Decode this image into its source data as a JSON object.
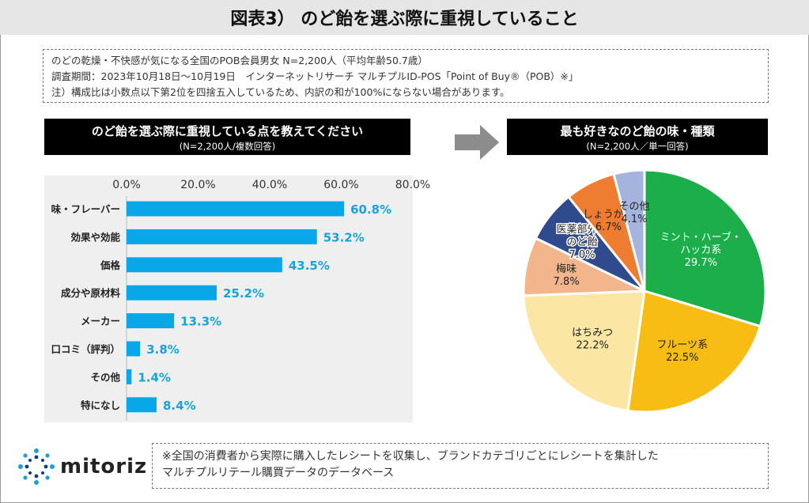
{
  "title": "図表3） のど飴を選ぶ際に重視していること",
  "info": {
    "line1": "のどの乾燥・不快感が気になる全国のPOB会員男女 N=2,200人（平均年齢50.7歳）",
    "line2": "調査期間：2023年10月18日～10月19日　インターネットリサーチ マルチプルID-POS「Point of Buy®（POB）※」",
    "line3": "注）構成比は小数点以下第2位を四捨五入しているため、内訳の和が100%にならない場合があります。"
  },
  "left_header": {
    "title": "のど飴を選ぶ際に重視している点を教えてください",
    "sub": "(N=2,200人/複数回答)"
  },
  "right_header": {
    "title": "最も好きなのど飴の味・種類",
    "sub": "(N=2,200人／単一回答)"
  },
  "footer": {
    "line1": "※全国の消費者から実際に購入したレシートを収集し、ブランドカテゴリごとにレシートを集計した",
    "line2": "マルチプルリテール購買データのデータベース"
  },
  "logo_text": "mitoriz",
  "colors": {
    "bar": "#0aa7e8",
    "value_label": "#1aa3d6",
    "title_bg": "#e6e6e6",
    "header_bg": "#000000"
  },
  "chart_data": [
    {
      "type": "bar",
      "orientation": "horizontal",
      "categories": [
        "味・フレーバー",
        "効果や効能",
        "価格",
        "成分や原材料",
        "メーカー",
        "口コミ（評判）",
        "その他",
        "特になし"
      ],
      "values": [
        60.8,
        53.2,
        43.5,
        25.2,
        13.3,
        3.8,
        1.4,
        8.4
      ],
      "value_labels": [
        "60.8%",
        "53.2%",
        "43.5%",
        "25.2%",
        "13.3%",
        "3.8%",
        "1.4%",
        "8.4%"
      ],
      "xlim": [
        0,
        80
      ],
      "ticks": [
        "0.0%",
        "20.0%",
        "40.0%",
        "60.0%",
        "80.0%"
      ],
      "tick_values": [
        0,
        20,
        40,
        60,
        80
      ]
    },
    {
      "type": "pie",
      "slices": [
        {
          "label": [
            "ミント・ハーブ・",
            "ハッカ系"
          ],
          "value": 29.7,
          "text": "29.7%",
          "color": "#1bae4b"
        },
        {
          "label": [
            "フルーツ系"
          ],
          "value": 22.5,
          "text": "22.5%",
          "color": "#f7bd12"
        },
        {
          "label": [
            "はちみつ"
          ],
          "value": 22.2,
          "text": "22.2%",
          "color": "#fbe6a4"
        },
        {
          "label": [
            "梅味"
          ],
          "value": 7.8,
          "text": "7.8%",
          "color": "#f3b58c"
        },
        {
          "label": [
            "医薬部外品",
            "のど飴"
          ],
          "value": 7.0,
          "text": "7.0%",
          "color": "#2f4b8e"
        },
        {
          "label": [
            "しょうが系"
          ],
          "value": 6.7,
          "text": "6.7%",
          "color": "#ef7d31"
        },
        {
          "label": [
            "その他"
          ],
          "value": 4.1,
          "text": "4.1%",
          "color": "#a4b4dc"
        }
      ]
    }
  ]
}
